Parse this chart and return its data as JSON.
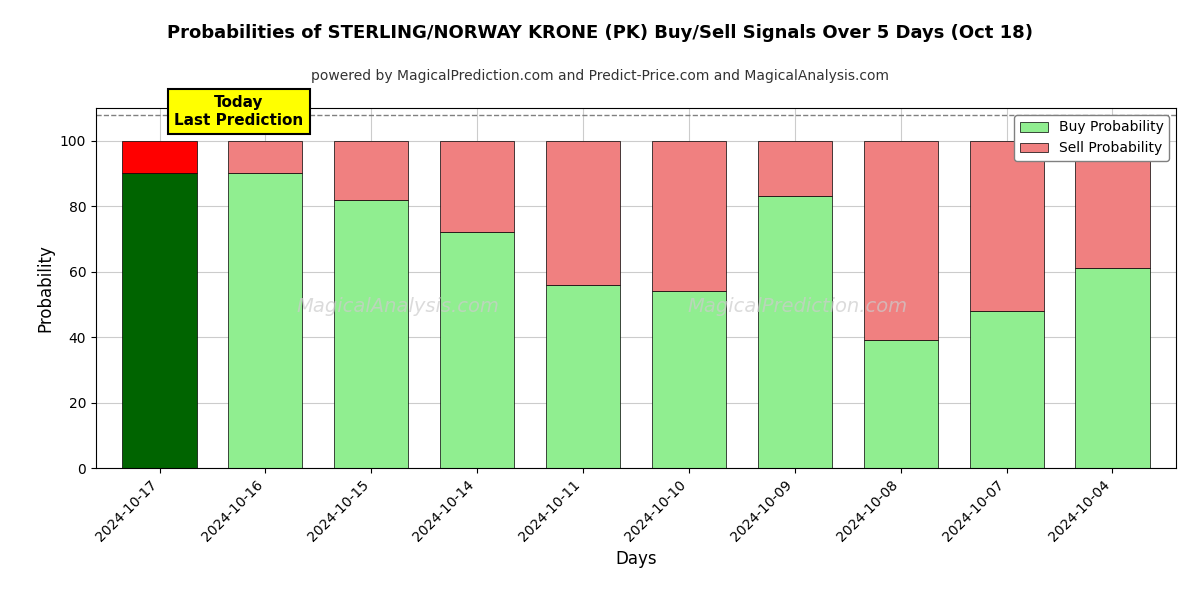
{
  "title": "Probabilities of STERLING/NORWAY KRONE (PK) Buy/Sell Signals Over 5 Days (Oct 18)",
  "subtitle": "powered by MagicalPrediction.com and Predict-Price.com and MagicalAnalysis.com",
  "xlabel": "Days",
  "ylabel": "Probability",
  "dates": [
    "2024-10-17",
    "2024-10-16",
    "2024-10-15",
    "2024-10-14",
    "2024-10-11",
    "2024-10-10",
    "2024-10-09",
    "2024-10-08",
    "2024-10-07",
    "2024-10-04"
  ],
  "buy_values": [
    90,
    90,
    82,
    72,
    56,
    54,
    83,
    39,
    48,
    61
  ],
  "sell_values": [
    10,
    10,
    18,
    28,
    44,
    46,
    17,
    61,
    52,
    39
  ],
  "today_bar_buy_color": "#006400",
  "today_bar_sell_color": "#ff0000",
  "regular_bar_buy_color": "#90EE90",
  "regular_bar_sell_color": "#F08080",
  "legend_buy_color": "#90EE90",
  "legend_sell_color": "#F08080",
  "today_label_bg": "#ffff00",
  "today_label_text": "Today\nLast Prediction",
  "ylim": [
    0,
    110
  ],
  "yticks": [
    0,
    20,
    40,
    60,
    80,
    100
  ],
  "dashed_line_y": 108,
  "bar_edgecolor": "#000000",
  "bar_linewidth": 0.5,
  "background_color": "#ffffff",
  "grid_color": "#cccccc"
}
